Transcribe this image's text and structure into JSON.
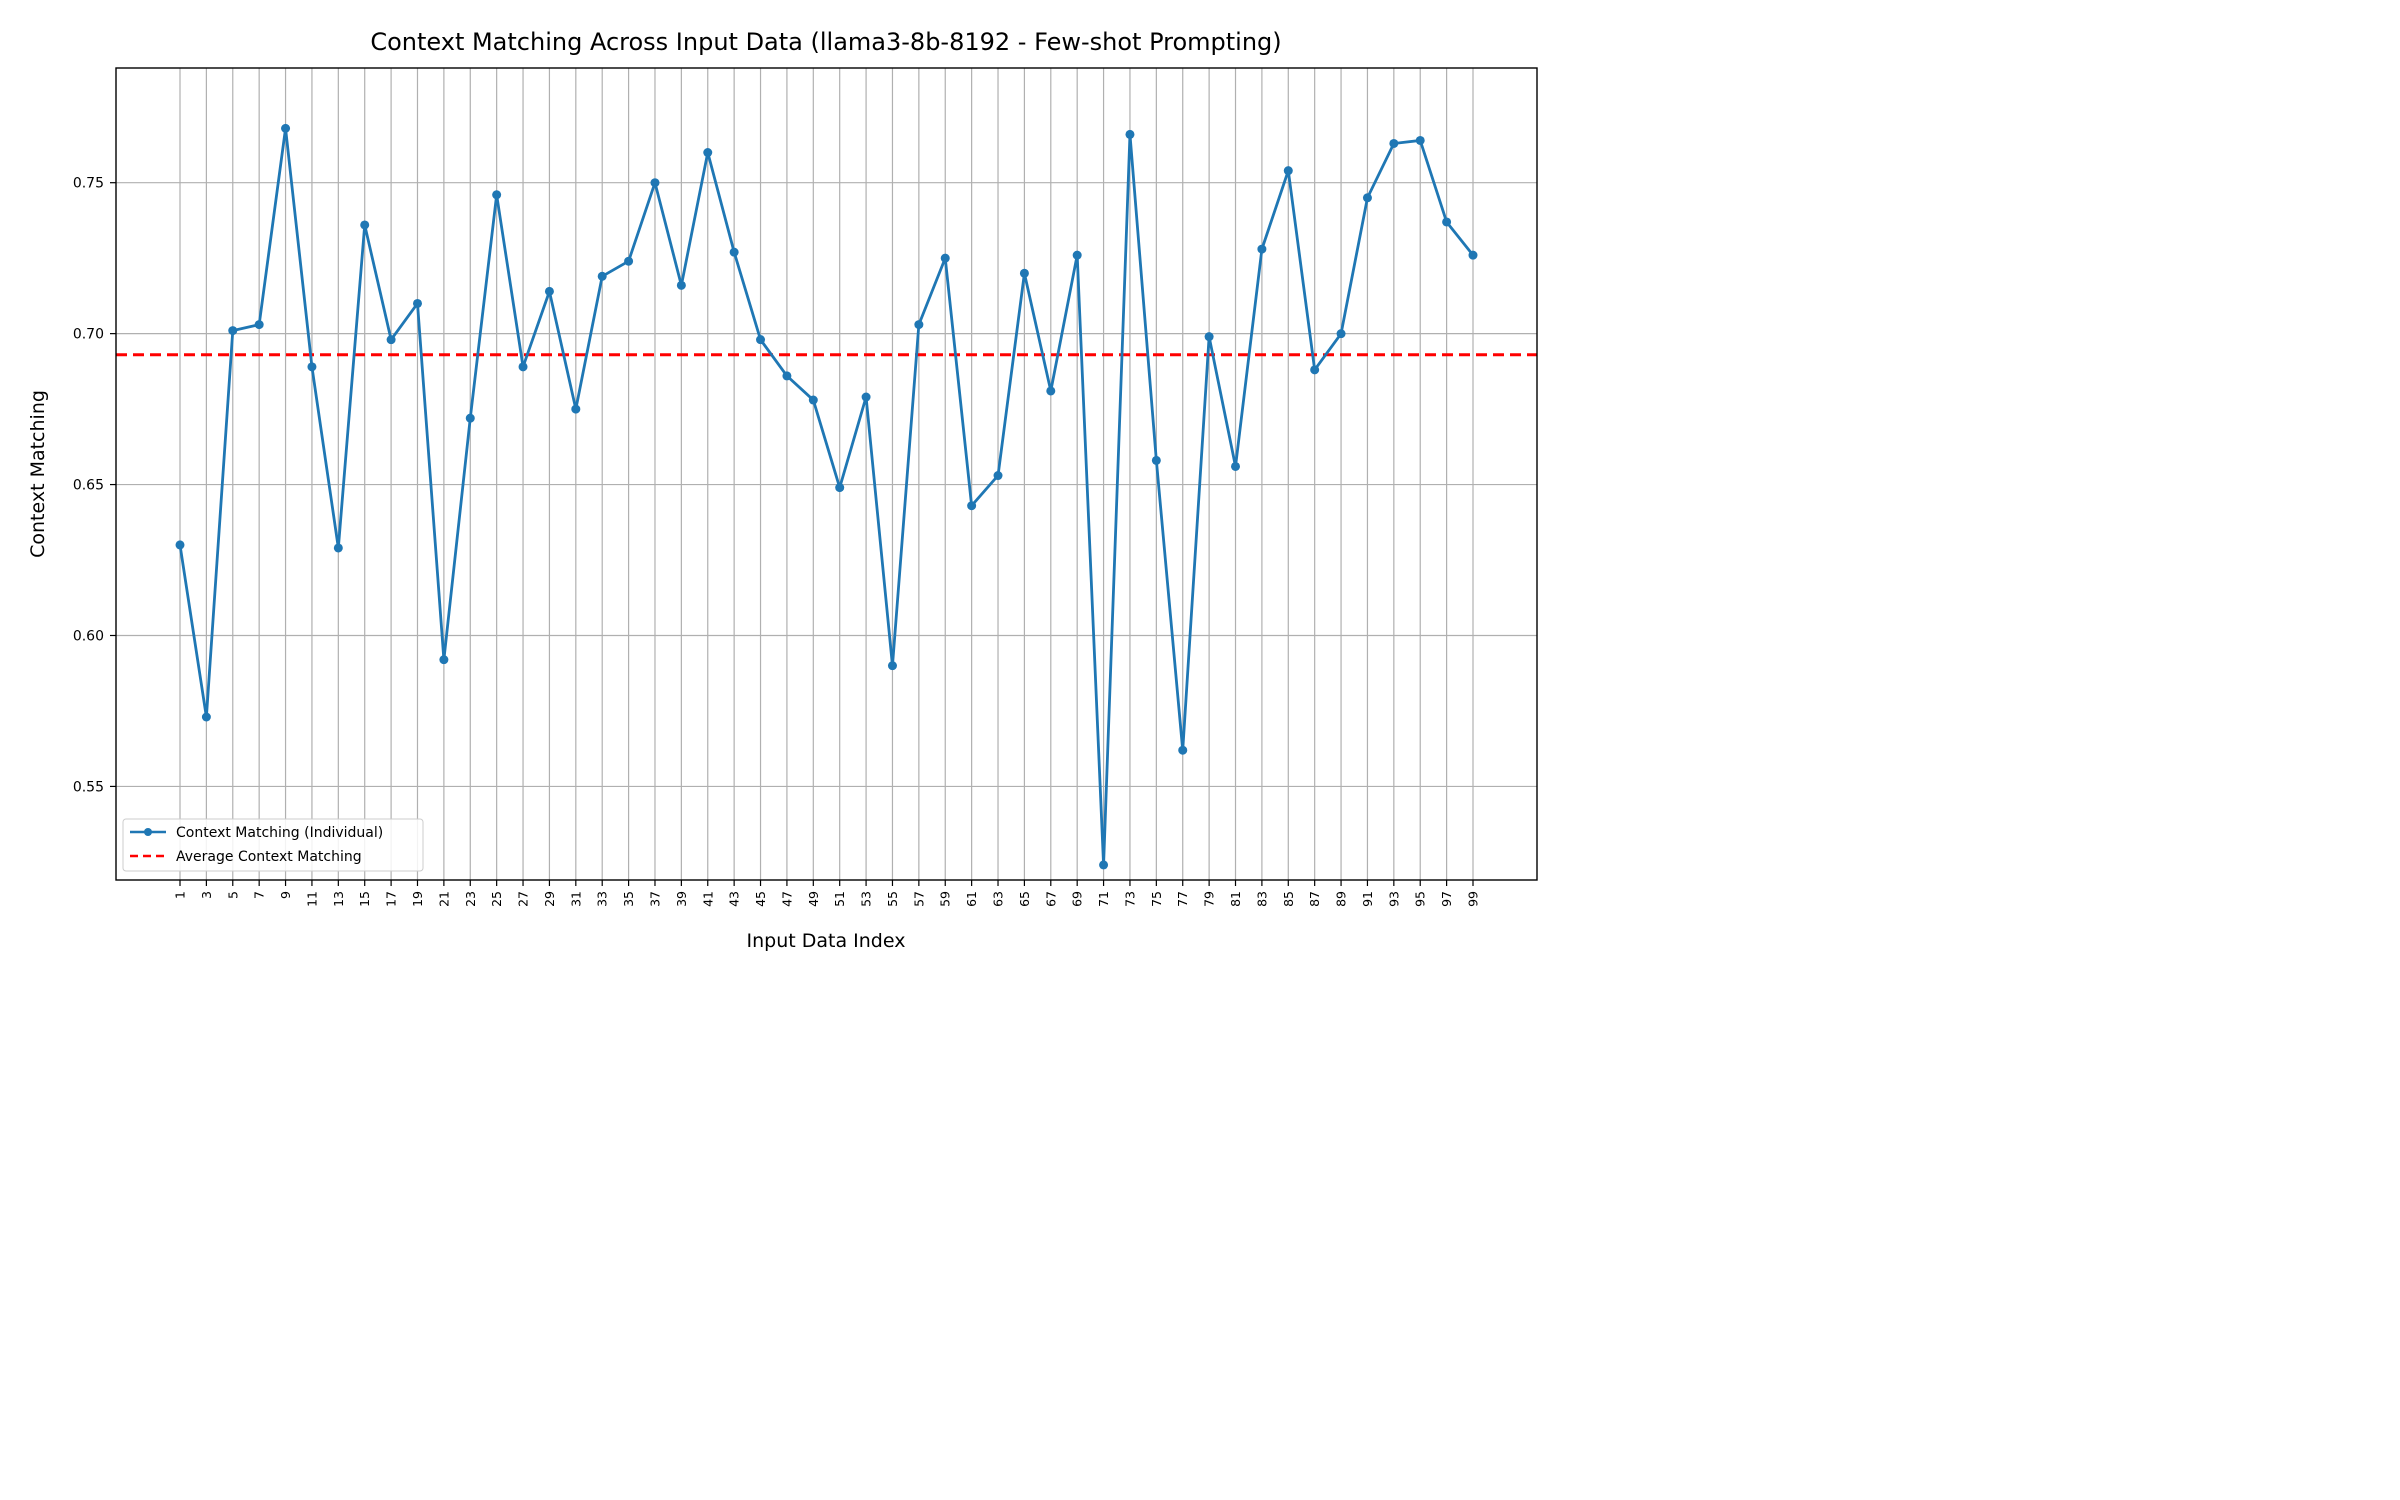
{
  "chart_data": {
    "type": "line",
    "title": "Context Matching Across Input Data (llama3-8b-8192 - Few-shot Prompting)",
    "xlabel": "Input Data Index",
    "ylabel": "Context Matching",
    "x": [
      1,
      3,
      5,
      7,
      9,
      11,
      13,
      15,
      17,
      19,
      21,
      23,
      25,
      27,
      29,
      31,
      33,
      35,
      37,
      39,
      41,
      43,
      45,
      47,
      49,
      51,
      53,
      55,
      57,
      59,
      61,
      63,
      65,
      67,
      69,
      71,
      73,
      75,
      77,
      79,
      81,
      83,
      85,
      87,
      89,
      91,
      93,
      95,
      97,
      99
    ],
    "xticks": [
      "1",
      "3",
      "5",
      "7",
      "9",
      "11",
      "13",
      "15",
      "17",
      "19",
      "21",
      "23",
      "25",
      "27",
      "29",
      "31",
      "33",
      "35",
      "37",
      "39",
      "41",
      "43",
      "45",
      "47",
      "49",
      "51",
      "53",
      "55",
      "57",
      "59",
      "61",
      "63",
      "65",
      "67",
      "69",
      "71",
      "73",
      "75",
      "77",
      "79",
      "81",
      "83",
      "85",
      "87",
      "89",
      "91",
      "93",
      "95",
      "97",
      "99"
    ],
    "yticks": [
      "0.55",
      "0.60",
      "0.65",
      "0.70",
      "0.75"
    ],
    "ylim": [
      0.519,
      0.788
    ],
    "grid": true,
    "legend_position": "bottom-left",
    "series": [
      {
        "name": "Context Matching (Individual)",
        "color": "#1f77b4",
        "style": "line-with-markers",
        "values": [
          0.63,
          0.573,
          0.701,
          0.703,
          0.768,
          0.689,
          0.629,
          0.736,
          0.698,
          0.71,
          0.592,
          0.672,
          0.746,
          0.689,
          0.714,
          0.675,
          0.719,
          0.724,
          0.75,
          0.716,
          0.76,
          0.727,
          0.698,
          0.686,
          0.678,
          0.649,
          0.679,
          0.59,
          0.703,
          0.725,
          0.643,
          0.653,
          0.72,
          0.681,
          0.726,
          0.524,
          0.766,
          0.658,
          0.562,
          0.699,
          0.656,
          0.728,
          0.754,
          0.688,
          0.7,
          0.745,
          0.763,
          0.764,
          0.737,
          0.726
        ]
      },
      {
        "name": "Average Context Matching",
        "color": "#ff0000",
        "style": "dashed",
        "value": 0.693
      }
    ]
  }
}
